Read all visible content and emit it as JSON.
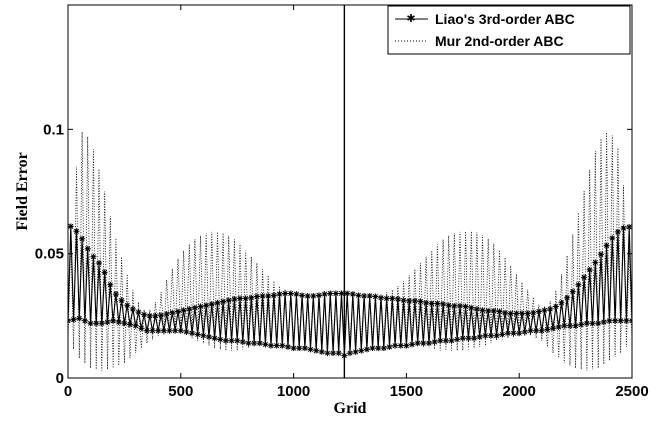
{
  "chart_data": {
    "type": "line",
    "title": "",
    "xlabel": "Grid",
    "ylabel": "Field Error",
    "xlim": [
      0,
      2500
    ],
    "ylim": [
      0,
      0.15
    ],
    "xticks": [
      0,
      500,
      1000,
      1500,
      2000,
      2500
    ],
    "yticks": [
      0,
      0.05,
      0.1
    ],
    "ytick_labels": [
      "0",
      "0.05",
      "0.1"
    ],
    "grid": false,
    "legend_position": "top-right",
    "annotations": [
      {
        "type": "vertical-line",
        "x": 1225
      }
    ],
    "series": [
      {
        "name": "Liao's 3rd-order ABC",
        "style": "solid line with star markers",
        "color": "#000000",
        "oscillation_period": 25,
        "x": [
          0,
          50,
          100,
          150,
          200,
          250,
          300,
          350,
          400,
          450,
          500,
          550,
          600,
          650,
          700,
          750,
          800,
          850,
          900,
          950,
          1000,
          1050,
          1100,
          1150,
          1200,
          1225,
          1250,
          1300,
          1350,
          1400,
          1450,
          1500,
          1550,
          1600,
          1650,
          1700,
          1750,
          1800,
          1850,
          1900,
          1950,
          2000,
          2050,
          2100,
          2150,
          2200,
          2250,
          2300,
          2350,
          2400,
          2450,
          2500
        ],
        "y_lower": [
          0.023,
          0.024,
          0.022,
          0.022,
          0.023,
          0.022,
          0.021,
          0.019,
          0.019,
          0.019,
          0.019,
          0.018,
          0.017,
          0.016,
          0.015,
          0.015,
          0.014,
          0.014,
          0.013,
          0.013,
          0.012,
          0.012,
          0.011,
          0.01,
          0.01,
          0.009,
          0.01,
          0.011,
          0.012,
          0.012,
          0.013,
          0.013,
          0.014,
          0.014,
          0.015,
          0.015,
          0.016,
          0.016,
          0.017,
          0.017,
          0.018,
          0.018,
          0.019,
          0.019,
          0.02,
          0.021,
          0.021,
          0.022,
          0.022,
          0.023,
          0.023,
          0.023
        ],
        "y_upper": [
          0.062,
          0.058,
          0.05,
          0.045,
          0.035,
          0.03,
          0.027,
          0.025,
          0.025,
          0.026,
          0.027,
          0.028,
          0.029,
          0.03,
          0.031,
          0.032,
          0.032,
          0.033,
          0.033,
          0.034,
          0.034,
          0.033,
          0.033,
          0.034,
          0.034,
          0.034,
          0.034,
          0.033,
          0.033,
          0.032,
          0.032,
          0.031,
          0.031,
          0.03,
          0.03,
          0.029,
          0.029,
          0.028,
          0.027,
          0.027,
          0.026,
          0.026,
          0.026,
          0.027,
          0.028,
          0.031,
          0.036,
          0.042,
          0.048,
          0.055,
          0.06,
          0.061
        ]
      },
      {
        "name": "Mur 2nd-order ABC",
        "style": "dotted line",
        "color": "#000000",
        "oscillation_period": 25,
        "x": [
          0,
          50,
          100,
          150,
          200,
          250,
          300,
          350,
          400,
          450,
          500,
          550,
          600,
          650,
          700,
          750,
          800,
          850,
          900,
          950,
          1000,
          1050,
          1100,
          1150,
          1200,
          1225,
          1250,
          1300,
          1350,
          1400,
          1450,
          1500,
          1550,
          1600,
          1650,
          1700,
          1750,
          1800,
          1850,
          1900,
          1950,
          2000,
          2050,
          2100,
          2150,
          2200,
          2250,
          2300,
          2350,
          2400,
          2450,
          2500
        ],
        "y_lower": [
          0.015,
          0.008,
          0.004,
          0.003,
          0.004,
          0.006,
          0.01,
          0.014,
          0.017,
          0.018,
          0.018,
          0.016,
          0.014,
          0.012,
          0.011,
          0.011,
          0.012,
          0.013,
          0.014,
          0.015,
          0.015,
          0.015,
          0.015,
          0.015,
          0.015,
          0.015,
          0.015,
          0.015,
          0.015,
          0.015,
          0.015,
          0.014,
          0.013,
          0.012,
          0.011,
          0.011,
          0.011,
          0.012,
          0.013,
          0.015,
          0.016,
          0.017,
          0.017,
          0.015,
          0.01,
          0.006,
          0.004,
          0.003,
          0.004,
          0.007,
          0.01,
          0.015
        ],
        "y_upper": [
          0.04,
          0.1,
          0.096,
          0.08,
          0.06,
          0.045,
          0.032,
          0.026,
          0.032,
          0.042,
          0.05,
          0.055,
          0.058,
          0.059,
          0.058,
          0.055,
          0.05,
          0.045,
          0.04,
          0.036,
          0.034,
          0.033,
          0.033,
          0.033,
          0.033,
          0.033,
          0.033,
          0.033,
          0.033,
          0.034,
          0.036,
          0.04,
          0.045,
          0.05,
          0.055,
          0.058,
          0.059,
          0.059,
          0.057,
          0.053,
          0.047,
          0.04,
          0.034,
          0.028,
          0.032,
          0.045,
          0.062,
          0.08,
          0.095,
          0.1,
          0.09,
          0.04
        ]
      }
    ]
  }
}
